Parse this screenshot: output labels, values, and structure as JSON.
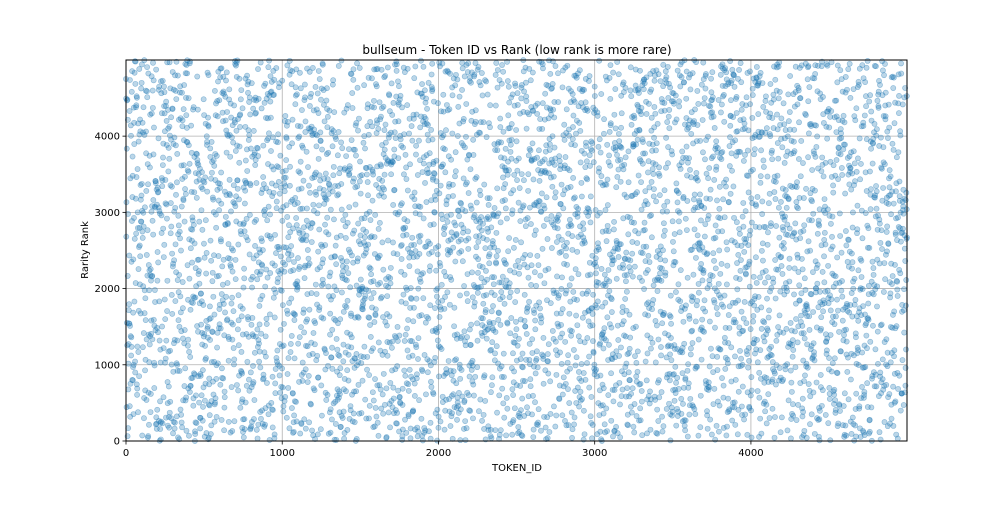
{
  "chart_data": {
    "type": "scatter",
    "title": "bullseum - Token ID vs Rank (low rank is more rare)",
    "xlabel": "TOKEN_ID",
    "ylabel": "Rarity Rank",
    "xlim": [
      0,
      4999
    ],
    "ylim": [
      0,
      4999
    ],
    "x_ticks": [
      0,
      1000,
      2000,
      3000,
      4000
    ],
    "y_ticks": [
      0,
      1000,
      2000,
      3000,
      4000
    ],
    "x_tick_labels": [
      "0",
      "1000",
      "2000",
      "3000",
      "4000"
    ],
    "y_tick_labels": [
      "0",
      "1000",
      "2000",
      "3000",
      "4000"
    ],
    "grid": true,
    "marker_color": "#1f77b4",
    "marker_alpha": 0.3,
    "point_count": 5000,
    "distribution": "each token ID 0–4999 has one rarity rank 0–4999; points spread uniformly at random across the plot"
  }
}
